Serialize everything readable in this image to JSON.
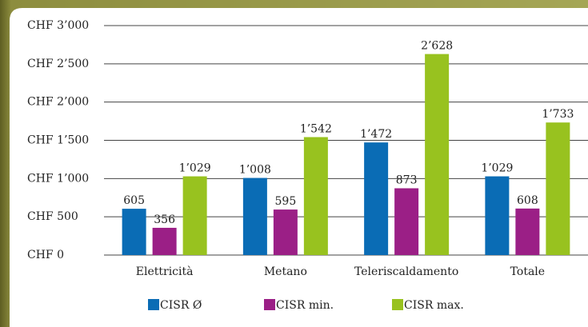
{
  "chart_data": {
    "type": "bar",
    "categories": [
      "Elettricità",
      "Metano",
      "Teleriscaldamento",
      "Totale"
    ],
    "series": [
      {
        "name": "CISR Ø",
        "color": "#0a6cb5",
        "values": [
          605,
          1008,
          1472,
          1029
        ],
        "value_labels": [
          "605",
          "1’008",
          "1’472",
          "1’029"
        ]
      },
      {
        "name": "CISR min.",
        "color": "#9b1f86",
        "values": [
          356,
          595,
          873,
          608
        ],
        "value_labels": [
          "356",
          "595",
          "873",
          "608"
        ]
      },
      {
        "name": "CISR max.",
        "color": "#98c21f",
        "values": [
          1029,
          1542,
          2628,
          1733
        ],
        "value_labels": [
          "1’029",
          "1’542",
          "2’628",
          "1’733"
        ]
      }
    ],
    "ylim": [
      0,
      3000
    ],
    "yticks": [
      {
        "value": 0,
        "label": "CHF 0"
      },
      {
        "value": 500,
        "label": "CHF 500"
      },
      {
        "value": 1000,
        "label": "CHF 1’000"
      },
      {
        "value": 1500,
        "label": "CHF 1’500"
      },
      {
        "value": 2000,
        "label": "CHF 2’000"
      },
      {
        "value": 2500,
        "label": "CHF 2’500"
      },
      {
        "value": 3000,
        "label": "CHF 3’000"
      }
    ],
    "grid": true,
    "legend": "bottom"
  }
}
